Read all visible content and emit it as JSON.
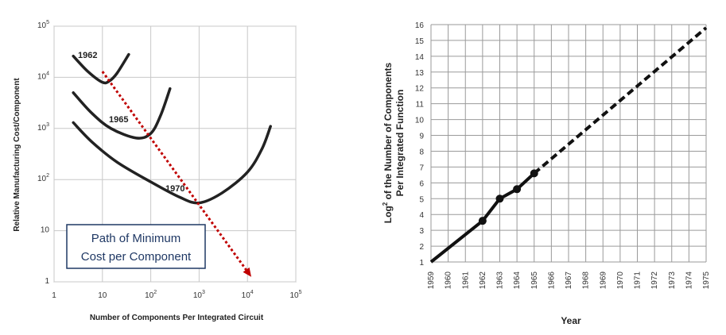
{
  "chart_data": [
    {
      "type": "line",
      "ylabel": "Relative Manufacturing Cost/Component",
      "xlabel": "Number of Components Per Integrated Circuit",
      "x_scale": "log",
      "y_scale": "log",
      "xlim": [
        1,
        100000
      ],
      "ylim": [
        1,
        100000
      ],
      "x_ticks": [
        {
          "value": 1,
          "base": "1",
          "exp": ""
        },
        {
          "value": 10,
          "base": "10",
          "exp": ""
        },
        {
          "value": 100,
          "base": "10",
          "exp": "2"
        },
        {
          "value": 1000,
          "base": "10",
          "exp": "3"
        },
        {
          "value": 10000,
          "base": "10",
          "exp": "4"
        },
        {
          "value": 100000,
          "base": "10",
          "exp": "5"
        }
      ],
      "y_ticks": [
        {
          "value": 1,
          "base": "1",
          "exp": ""
        },
        {
          "value": 10,
          "base": "10",
          "exp": ""
        },
        {
          "value": 100,
          "base": "10",
          "exp": "2"
        },
        {
          "value": 1000,
          "base": "10",
          "exp": "3"
        },
        {
          "value": 10000,
          "base": "10",
          "exp": "4"
        },
        {
          "value": 100000,
          "base": "10",
          "exp": "5"
        }
      ],
      "grid": true,
      "series": [
        {
          "name": "1962",
          "points": [
            [
              2.5,
              26000
            ],
            [
              5,
              13000
            ],
            [
              10,
              8000
            ],
            [
              14,
              8500
            ],
            [
              20,
              12000
            ],
            [
              35,
              28000
            ]
          ]
        },
        {
          "name": "1965",
          "points": [
            [
              2.5,
              5000
            ],
            [
              6,
              2000
            ],
            [
              15,
              1000
            ],
            [
              50,
              650
            ],
            [
              100,
              800
            ],
            [
              160,
              1800
            ],
            [
              250,
              6000
            ]
          ]
        },
        {
          "name": "1970",
          "points": [
            [
              2.5,
              1300
            ],
            [
              6,
              550
            ],
            [
              20,
              220
            ],
            [
              100,
              90
            ],
            [
              400,
              45
            ],
            [
              1000,
              35
            ],
            [
              3000,
              55
            ],
            [
              10000,
              140
            ],
            [
              20000,
              400
            ],
            [
              30000,
              1100
            ]
          ]
        }
      ],
      "min_path": [
        [
          10,
          13000
        ],
        [
          12000,
          1.25
        ]
      ],
      "annotation": "Path of Minimum Cost per Component",
      "annotation_lines": [
        "Path of Minimum",
        "Cost per Component"
      ]
    },
    {
      "type": "line",
      "ylabel": "Log² of the Number of Components Per Integrated Function",
      "ylabel_lines": [
        "Log",
        "2",
        " of the Number of Components",
        "Per Integrated Function"
      ],
      "xlabel": "Year",
      "xlim": [
        1959,
        1975
      ],
      "ylim": [
        1,
        16
      ],
      "x_ticks": [
        "1959",
        "1960",
        "1961",
        "1962",
        "1963",
        "1964",
        "1965",
        "1966",
        "1967",
        "1968",
        "1969",
        "1970",
        "1971",
        "1972",
        "1973",
        "1974",
        "1975"
      ],
      "y_ticks": [
        "1",
        "2",
        "3",
        "4",
        "5",
        "6",
        "7",
        "8",
        "9",
        "10",
        "11",
        "12",
        "13",
        "14",
        "15",
        "16"
      ],
      "grid": true,
      "series": [
        {
          "name": "",
          "style": "solid",
          "points": [
            [
              1959,
              1
            ],
            [
              1962,
              3.6
            ],
            [
              1963,
              5
            ],
            [
              1964,
              5.6
            ],
            [
              1965,
              6.6
            ]
          ]
        },
        {
          "name": "",
          "style": "dashed",
          "points": [
            [
              1965,
              6.6
            ],
            [
              1975,
              15.8
            ]
          ]
        }
      ],
      "markers": [
        [
          1962,
          3.6
        ],
        [
          1963,
          5
        ],
        [
          1964,
          5.6
        ],
        [
          1965,
          6.6
        ]
      ]
    }
  ]
}
